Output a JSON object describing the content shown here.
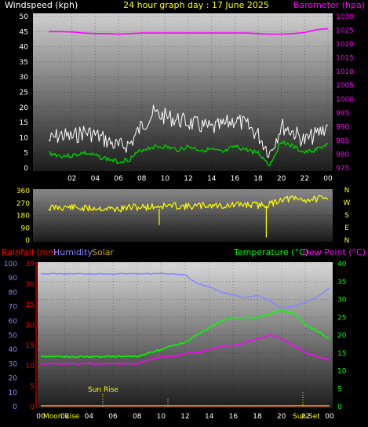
{
  "header": {
    "windspeed_label": "Windspeed (kph)",
    "title": "24 hour graph day : 17 June 2025",
    "barometer_label": "Barometer (hpa)"
  },
  "legend2": {
    "rainfall": "Rainfall (mm)",
    "humidity": "Humidity",
    "solar": "Solar",
    "temperature": "Temperature (°C)",
    "dewpoint": "Dew Point (°C)"
  },
  "annotations": {
    "moon_rise": "Moon Rise",
    "sun_rise": "Sun Rise",
    "sun_set": "Sun Set"
  },
  "colors": {
    "windspeed_text": "#ffffff",
    "gust_line": "#ffffff",
    "avg_wind_line": "#00cc00",
    "barometer": "#ff00ff",
    "wind_direction": "#ffff00",
    "rain_axis": "#ff0000",
    "humidity": "#8888ff",
    "solar": "#c8a000",
    "temperature": "#00ff00",
    "dewpoint": "#ff00ff",
    "title": "#ffff00",
    "rain_line": "#ff8800"
  },
  "chart_data": [
    {
      "type": "line",
      "name": "wind-barometer",
      "x_ticks": [
        "02",
        "04",
        "06",
        "08",
        "10",
        "12",
        "14",
        "16",
        "18",
        "20",
        "22",
        "00"
      ],
      "y_left_ticks": [
        "0",
        "5",
        "10",
        "15",
        "20",
        "25",
        "30",
        "35",
        "40",
        "45",
        "50"
      ],
      "ylim_left": [
        0,
        50
      ],
      "y_right_ticks": [
        "975",
        "980",
        "985",
        "990",
        "995",
        "1000",
        "1005",
        "1010",
        "1015",
        "1020",
        "1025",
        "1030"
      ],
      "ylim_right": [
        975,
        1030
      ],
      "grid": true,
      "x_hours": [
        0,
        1,
        2,
        3,
        4,
        5,
        6,
        7,
        8,
        9,
        10,
        11,
        12,
        13,
        14,
        15,
        16,
        17,
        18,
        19,
        20,
        21,
        22,
        23,
        24
      ],
      "gust": [
        9,
        11,
        10,
        12,
        11,
        9,
        7,
        8,
        14,
        18,
        17,
        16,
        15,
        14,
        13,
        14,
        16,
        14,
        11,
        5,
        14,
        12,
        9,
        11,
        14
      ],
      "average": [
        5,
        4,
        4,
        5,
        4,
        3,
        2,
        3,
        6,
        7,
        7,
        6,
        7,
        6,
        6,
        5,
        7,
        6,
        5,
        1,
        9,
        7,
        5,
        6,
        8
      ],
      "barometer": [
        1024.5,
        1024.5,
        1024.4,
        1024.0,
        1023.8,
        1023.8,
        1023.6,
        1023.8,
        1024.0,
        1024.0,
        1024.0,
        1024.0,
        1024.0,
        1024.0,
        1024.0,
        1024.0,
        1024.0,
        1024.0,
        1023.8,
        1023.6,
        1023.6,
        1023.8,
        1024.2,
        1025.2,
        1025.6
      ]
    },
    {
      "type": "line",
      "name": "wind-direction",
      "y_ticks": [
        "0",
        "90",
        "180",
        "270",
        "360"
      ],
      "ylim": [
        0,
        360
      ],
      "compass": [
        "N",
        "W",
        "S",
        "E",
        "N"
      ],
      "x_hours": [
        0,
        1,
        2,
        3,
        4,
        5,
        6,
        7,
        8,
        9,
        10,
        11,
        12,
        13,
        14,
        15,
        16,
        17,
        18,
        19,
        20,
        21,
        22,
        23,
        24
      ],
      "direction": [
        235,
        240,
        240,
        230,
        235,
        230,
        225,
        240,
        240,
        245,
        250,
        250,
        245,
        250,
        255,
        250,
        255,
        260,
        255,
        260,
        300,
        300,
        295,
        300,
        300
      ]
    },
    {
      "type": "line",
      "name": "temp-humidity-rain",
      "y_left_ticks": [
        "0",
        "5",
        "10",
        "15",
        "20",
        "25",
        "30",
        "35"
      ],
      "ylim_rain": [
        0,
        35
      ],
      "y_humidity_ticks": [
        "0",
        "10",
        "20",
        "30",
        "40",
        "50",
        "60",
        "70",
        "80",
        "90",
        "100"
      ],
      "ylim_humidity": [
        0,
        100
      ],
      "y_right_ticks": [
        "0",
        "5",
        "10",
        "15",
        "20",
        "25",
        "30",
        "35",
        "40"
      ],
      "ylim_temp": [
        0,
        40
      ],
      "x_tick_labels": [
        "00",
        "02",
        "04",
        "06",
        "08",
        "10",
        "12",
        "14",
        "16",
        "18",
        "20",
        "22",
        "00"
      ],
      "x_hours": [
        0,
        1,
        2,
        3,
        4,
        5,
        6,
        7,
        8,
        9,
        10,
        11,
        12,
        13,
        14,
        15,
        16,
        17,
        18,
        19,
        20,
        21,
        22,
        23,
        24
      ],
      "humidity": [
        93,
        93,
        93,
        93,
        93,
        93,
        93,
        93,
        93,
        93,
        93,
        93,
        92,
        86,
        84,
        80,
        78,
        76,
        78,
        74,
        69,
        70,
        73,
        77,
        83
      ],
      "temperature": [
        14,
        14,
        14,
        14,
        14,
        14,
        14,
        14,
        14,
        15,
        16,
        17,
        18,
        20,
        22,
        24,
        25,
        25,
        25,
        26,
        27,
        26,
        23,
        21,
        19
      ],
      "dewpoint": [
        12,
        12,
        12,
        12,
        12,
        12,
        12,
        12,
        12,
        13,
        14,
        14,
        15,
        15,
        16,
        17,
        17,
        18,
        19,
        20,
        19,
        17,
        15,
        14,
        13
      ],
      "rainfall": [
        0,
        0,
        0,
        0,
        0,
        0,
        0,
        0,
        0,
        0,
        0,
        0,
        0,
        0,
        0,
        0,
        0,
        0,
        0,
        0,
        0,
        0,
        0,
        0,
        0
      ],
      "solar": [
        0,
        0,
        0,
        0,
        0,
        0,
        0,
        0,
        0,
        0,
        0,
        0,
        0,
        0,
        0,
        0,
        0,
        0,
        0,
        0,
        0,
        0,
        0,
        0,
        0
      ]
    }
  ]
}
